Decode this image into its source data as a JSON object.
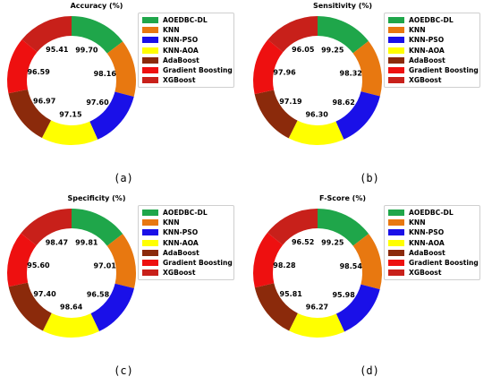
{
  "chart_data": [
    {
      "type": "pie",
      "title": "Accuracy (%)",
      "panel_label": "(a)",
      "categories": [
        "AOEDBC-DL",
        "KNN",
        "KNN-PSO",
        "KNN-AOA",
        "AdaBoost",
        "Gradient Boosting",
        "XGBoost"
      ],
      "values": [
        99.7,
        98.16,
        97.6,
        97.15,
        96.97,
        96.59,
        95.41
      ],
      "colors": [
        "#1fa64a",
        "#e87810",
        "#1a10e8",
        "#ffff00",
        "#8b2a0b",
        "#ee1010",
        "#c8201a"
      ]
    },
    {
      "type": "pie",
      "title": "Sensitivity (%)",
      "panel_label": "(b)",
      "categories": [
        "AOEDBC-DL",
        "KNN",
        "KNN-PSO",
        "KNN-AOA",
        "AdaBoost",
        "Gradient Boosting",
        "XGBoost"
      ],
      "values": [
        99.25,
        98.32,
        98.62,
        96.3,
        97.19,
        97.96,
        96.05
      ],
      "colors": [
        "#1fa64a",
        "#e87810",
        "#1a10e8",
        "#ffff00",
        "#8b2a0b",
        "#ee1010",
        "#c8201a"
      ]
    },
    {
      "type": "pie",
      "title": "Specificity (%)",
      "panel_label": "(c)",
      "categories": [
        "AOEDBC-DL",
        "KNN",
        "KNN-PSO",
        "KNN-AOA",
        "AdaBoost",
        "Gradient Boosting",
        "XGBoost"
      ],
      "values": [
        99.81,
        97.01,
        96.58,
        98.64,
        97.4,
        95.6,
        98.47
      ],
      "colors": [
        "#1fa64a",
        "#e87810",
        "#1a10e8",
        "#ffff00",
        "#8b2a0b",
        "#ee1010",
        "#c8201a"
      ]
    },
    {
      "type": "pie",
      "title": "F-Score (%)",
      "panel_label": "(d)",
      "categories": [
        "AOEDBC-DL",
        "KNN",
        "KNN-PSO",
        "KNN-AOA",
        "AdaBoost",
        "Gradient Boosting",
        "XGBoost"
      ],
      "values": [
        99.25,
        98.54,
        95.98,
        96.27,
        95.81,
        98.28,
        96.52
      ],
      "colors": [
        "#1fa64a",
        "#e87810",
        "#1a10e8",
        "#ffff00",
        "#8b2a0b",
        "#ee1010",
        "#c8201a"
      ]
    }
  ]
}
